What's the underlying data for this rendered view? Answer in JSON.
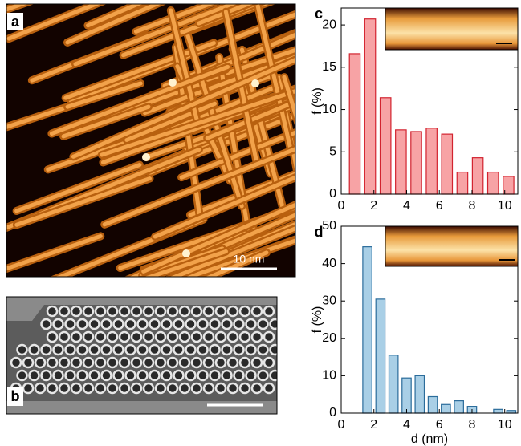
{
  "panel_labels": {
    "a": "a",
    "b": "b"
  },
  "scale_label": "10 nm",
  "chart_data": [
    {
      "type": "histogram",
      "panel": "c",
      "ylabel": "f (%)",
      "bins": [
        0.36,
        1.3,
        2.24,
        3.18,
        4.12,
        5.06,
        6.0,
        6.94,
        7.88,
        8.82,
        9.76,
        10.7
      ],
      "values": [
        16.6,
        20.7,
        11.4,
        7.6,
        7.4,
        7.8,
        7.1,
        2.6,
        4.3,
        2.6,
        2.1
      ],
      "color": "#f7a3a5",
      "edgecolor": "#d2232f",
      "xlim": [
        0,
        10.8
      ],
      "xticks": [
        0,
        2,
        4,
        6,
        8,
        10
      ],
      "ylim": [
        0,
        22
      ],
      "yticks": [
        0,
        5,
        10,
        15,
        20
      ]
    },
    {
      "type": "histogram",
      "panel": "d",
      "ylabel": "f (%)",
      "xlabel": "d (nm)",
      "bins": [
        1.2,
        2.0,
        2.8,
        3.6,
        4.4,
        5.2,
        6.0,
        6.8,
        7.6,
        8.4,
        9.2,
        10.0,
        10.8
      ],
      "values": [
        44.5,
        30.5,
        15.5,
        9.4,
        10.0,
        4.4,
        2.3,
        3.3,
        1.8,
        0,
        1.0,
        0.7
      ],
      "color": "#a9cfe6",
      "edgecolor": "#2b6c9b",
      "xlim": [
        0,
        10.8
      ],
      "xticks": [
        0,
        2,
        4,
        6,
        8,
        10
      ],
      "ylim": [
        0,
        50
      ],
      "yticks": [
        0,
        10,
        20,
        30,
        40,
        50
      ]
    }
  ]
}
